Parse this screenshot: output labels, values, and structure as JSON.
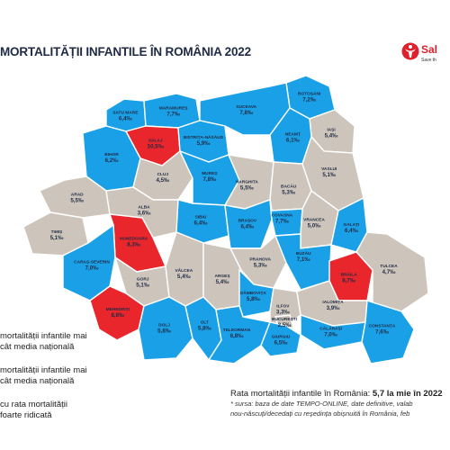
{
  "header": {
    "title": "MORTALITĂȚII INFANTILE ÎN ROMÂNIA 2022",
    "logo_text": "Sal",
    "logo_tagline": "Save th"
  },
  "colors": {
    "above_national": "#1aa0e6",
    "below_national": "#cdc5bb",
    "very_high": "#e8262c",
    "border": "#ffffff",
    "text": "#1f2a44"
  },
  "legend": {
    "items": [
      {
        "line1": "mortalității infantile mai",
        "line2": "cât media națională"
      },
      {
        "line1": "mortalității infantile mai",
        "line2": "cât media națională"
      },
      {
        "line1": "cu rata mortalității",
        "line2": "foarte ridicată"
      }
    ]
  },
  "footer": {
    "rate_label": "Rata mortalității infantile în România:",
    "rate_value": "5,7 la mie în 2022",
    "source_line1": "* sursa: baza de date TEMPO-ONLINE, date definitive, valab",
    "source_line2": "nou-născuți/decedați cu reședința obișnuită în România, feb"
  },
  "counties": [
    {
      "name": "SATU MARE",
      "value": "6,4",
      "category": "above_national"
    },
    {
      "name": "MARAMUREȘ",
      "value": "7,7",
      "category": "above_national"
    },
    {
      "name": "BOTOȘANI",
      "value": "7,2",
      "category": "above_national"
    },
    {
      "name": "SUCEAVA",
      "value": "7,8",
      "category": "above_national"
    },
    {
      "name": "SĂLAJ",
      "value": "10,5",
      "category": "very_high"
    },
    {
      "name": "BISTRIȚA-NĂSĂUD",
      "value": "5,9",
      "category": "above_national"
    },
    {
      "name": "IAȘI",
      "value": "5,4",
      "category": "below_national"
    },
    {
      "name": "NEAMȚ",
      "value": "6,1",
      "category": "above_national"
    },
    {
      "name": "BIHOR",
      "value": "6,2",
      "category": "above_national"
    },
    {
      "name": "CLUJ",
      "value": "4,5",
      "category": "below_national"
    },
    {
      "name": "MUREȘ",
      "value": "7,8",
      "category": "above_national"
    },
    {
      "name": "HARGHITA",
      "value": "5,5",
      "category": "below_national"
    },
    {
      "name": "BACĂU",
      "value": "5,3",
      "category": "below_national"
    },
    {
      "name": "VASLUI",
      "value": "5,1",
      "category": "below_national"
    },
    {
      "name": "ARAD",
      "value": "5,5",
      "category": "below_national"
    },
    {
      "name": "ALBA",
      "value": "3,6",
      "category": "below_national"
    },
    {
      "name": "SIBIU",
      "value": "6,4",
      "category": "above_national"
    },
    {
      "name": "BRAȘOV",
      "value": "6,4",
      "category": "above_national"
    },
    {
      "name": "COVASNA",
      "value": "7,7",
      "category": "above_national"
    },
    {
      "name": "VRANCEA",
      "value": "5,0",
      "category": "below_national"
    },
    {
      "name": "GALAȚI",
      "value": "6,4",
      "category": "above_national"
    },
    {
      "name": "TIMIȘ",
      "value": "5,1",
      "category": "below_national"
    },
    {
      "name": "HUNEDOARA",
      "value": "8,3",
      "category": "very_high"
    },
    {
      "name": "CARAȘ-SEVERIN",
      "value": "7,0",
      "category": "above_national"
    },
    {
      "name": "GORJ",
      "value": "5,1",
      "category": "below_national"
    },
    {
      "name": "VÂLCEA",
      "value": "5,4",
      "category": "below_national"
    },
    {
      "name": "ARGEȘ",
      "value": "5,4",
      "category": "below_national"
    },
    {
      "name": "PRAHOVA",
      "value": "5,3",
      "category": "below_national"
    },
    {
      "name": "BUZĂU",
      "value": "7,1",
      "category": "above_national"
    },
    {
      "name": "BRĂILA",
      "value": "8,7",
      "category": "very_high"
    },
    {
      "name": "TULCEA",
      "value": "4,7",
      "category": "below_national"
    },
    {
      "name": "MEHEDINȚI",
      "value": "8,8",
      "category": "very_high"
    },
    {
      "name": "DÂMBOVIȚA",
      "value": "5,8",
      "category": "above_national"
    },
    {
      "name": "ILFOV",
      "value": "3,3",
      "category": "below_national"
    },
    {
      "name": "BUCUREȘTI",
      "value": "2,5",
      "category": "below_national"
    },
    {
      "name": "IALOMIȚA",
      "value": "3,9",
      "category": "below_national"
    },
    {
      "name": "DOLJ",
      "value": "5,8",
      "category": "above_national"
    },
    {
      "name": "OLT",
      "value": "5,8",
      "category": "above_national"
    },
    {
      "name": "TELEORMAN",
      "value": "6,8",
      "category": "above_national"
    },
    {
      "name": "GIURGIU",
      "value": "6,5",
      "category": "above_national"
    },
    {
      "name": "CĂLĂRAȘI",
      "value": "7,0",
      "category": "above_national"
    },
    {
      "name": "CONSTANȚA",
      "value": "7,6",
      "category": "above_national"
    }
  ],
  "unit": "‰"
}
